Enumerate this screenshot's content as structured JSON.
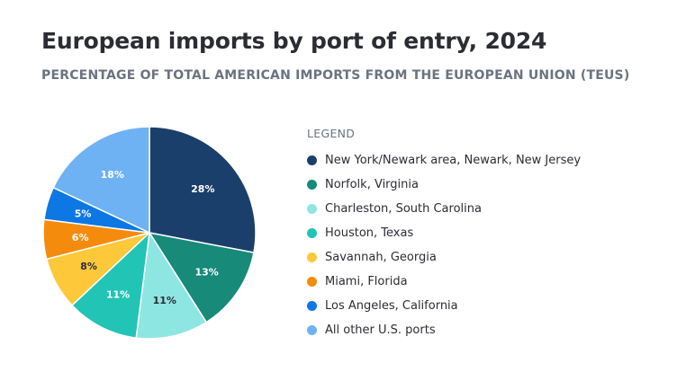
{
  "title": "European imports by port of entry, 2024",
  "subtitle": "PERCENTAGE OF TOTAL AMERICAN IMPORTS FROM THE EUROPEAN UNION (TEUS)",
  "legend_title": "LEGEND",
  "chart_data": {
    "type": "pie",
    "legend_position": "right",
    "slices": [
      {
        "label": "New York/Newark area, Newark, New Jersey",
        "value": 28,
        "value_label": "28%",
        "color": "#1b3f6b",
        "label_color": "#ffffff"
      },
      {
        "label": "Norfolk, Virginia",
        "value": 13,
        "value_label": "13%",
        "color": "#178a7a",
        "label_color": "#ffffff"
      },
      {
        "label": "Charleston, South Carolina",
        "value": 11,
        "value_label": "11%",
        "color": "#8ee6e2",
        "label_color": "#2b2d33"
      },
      {
        "label": "Houston, Texas",
        "value": 11,
        "value_label": "11%",
        "color": "#22c4b5",
        "label_color": "#ffffff"
      },
      {
        "label": "Savannah, Georgia",
        "value": 8,
        "value_label": "8%",
        "color": "#fdc83a",
        "label_color": "#2b2d33"
      },
      {
        "label": "Miami, Florida",
        "value": 6,
        "value_label": "6%",
        "color": "#f58b0c",
        "label_color": "#ffffff"
      },
      {
        "label": "Los Angeles, California",
        "value": 5,
        "value_label": "5%",
        "color": "#0d78e3",
        "label_color": "#ffffff"
      },
      {
        "label": "All other U.S. ports",
        "value": 18,
        "value_label": "18%",
        "color": "#6fb2f4",
        "label_color": "#ffffff"
      }
    ]
  }
}
